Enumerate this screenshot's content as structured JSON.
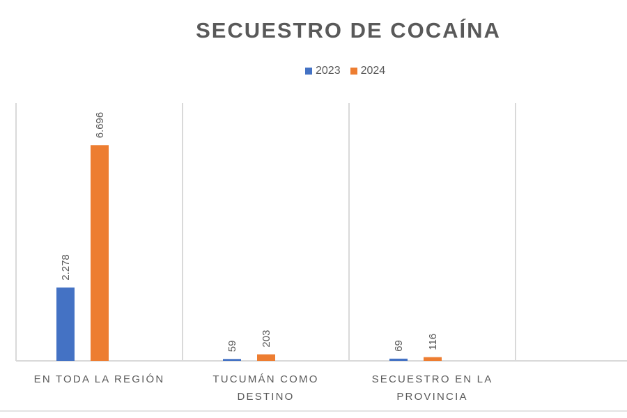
{
  "chart_data": {
    "type": "bar",
    "title": "SECUESTRO DE COCAÍNA",
    "categories": [
      "EN TODA LA REGIÓN",
      "TUCUMÁN COMO DESTINO",
      "SECUESTRO EN LA PROVINCIA"
    ],
    "category_lines": [
      [
        "EN TODA LA REGIÓN"
      ],
      [
        "TUCUMÁN COMO",
        "DESTINO"
      ],
      [
        "SECUESTRO EN LA",
        "PROVINCIA"
      ]
    ],
    "series": [
      {
        "name": "2023",
        "color": "#4472C4",
        "values": [
          2278,
          59,
          69
        ],
        "labels": [
          "2.278",
          "59",
          "69"
        ]
      },
      {
        "name": "2024",
        "color": "#ED7D31",
        "values": [
          6696,
          203,
          116
        ],
        "labels": [
          "6.696",
          "203",
          "116"
        ]
      }
    ],
    "ylim": [
      0,
      8000
    ],
    "grid": "vertical category separators",
    "legend": "top-center",
    "xlabel": "",
    "ylabel": ""
  }
}
